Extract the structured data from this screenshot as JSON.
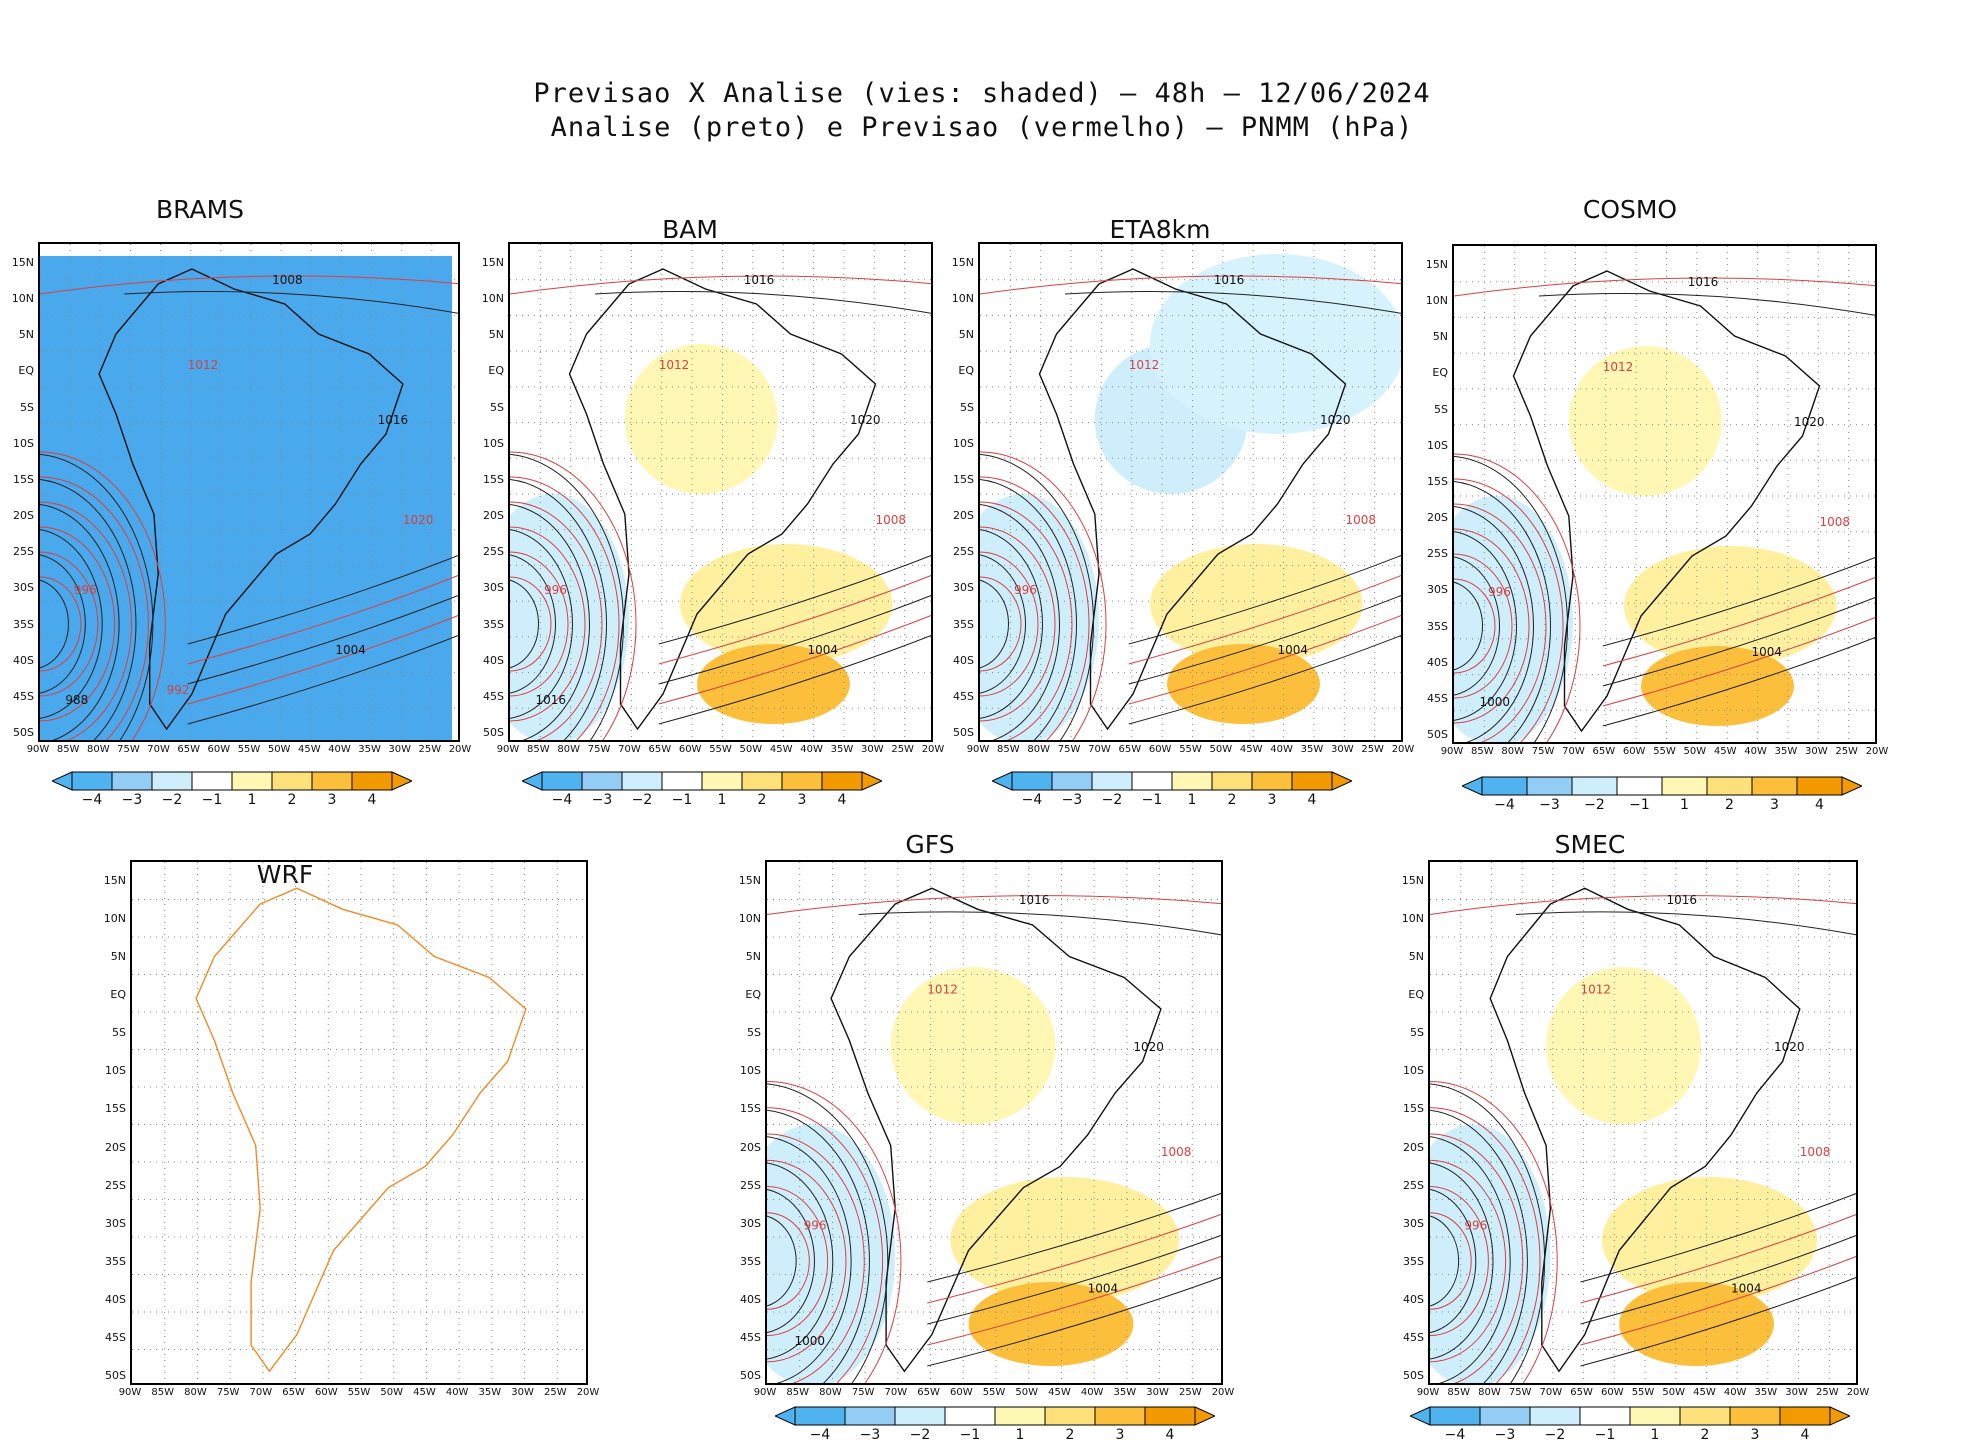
{
  "header": {
    "line1": "Previsao X Analise (vies: shaded) – 48h – 12/06/2024",
    "line2": "Analise (preto) e Previsao (vermelho) – PNMM (hPa)"
  },
  "axes": {
    "lat_labels": [
      "15N",
      "10N",
      "5N",
      "EQ",
      "5S",
      "10S",
      "15S",
      "20S",
      "25S",
      "30S",
      "35S",
      "40S",
      "45S",
      "50S"
    ],
    "lon_labels": [
      "90W",
      "85W",
      "80W",
      "75W",
      "70W",
      "65W",
      "60W",
      "55W",
      "50W",
      "45W",
      "40W",
      "35W",
      "30W",
      "25W",
      "20W"
    ]
  },
  "colorbar": {
    "labels": [
      "−4",
      "−3",
      "−2",
      "−1",
      "1",
      "2",
      "3",
      "4"
    ],
    "colors": [
      "#4fb3f0",
      "#93cdf5",
      "#cfeefc",
      "#ffffff",
      "#fff7b3",
      "#fde07a",
      "#fbbf3c",
      "#f39a00"
    ]
  },
  "panels": [
    {
      "name": "BRAMS",
      "contours": [
        "1008",
        "1012",
        "1016",
        "1020",
        "1004",
        "996",
        "988",
        "992"
      ]
    },
    {
      "name": "BAM",
      "contours": [
        "1016",
        "1012",
        "1020",
        "1008",
        "1004",
        "996",
        "1016"
      ]
    },
    {
      "name": "ETA8km",
      "contours": [
        "1016",
        "1012",
        "1020",
        "1008",
        "1004",
        "996"
      ]
    },
    {
      "name": "COSMO",
      "contours": [
        "1016",
        "1012",
        "1020",
        "1008",
        "1004",
        "996",
        "1000"
      ]
    },
    {
      "name": "WRF",
      "contours": []
    },
    {
      "name": "GFS",
      "contours": [
        "1016",
        "1012",
        "1020",
        "1008",
        "1004",
        "996",
        "1000"
      ]
    },
    {
      "name": "SMEC",
      "contours": [
        "1016",
        "1012",
        "1020",
        "1008",
        "1004",
        "996"
      ]
    }
  ]
}
